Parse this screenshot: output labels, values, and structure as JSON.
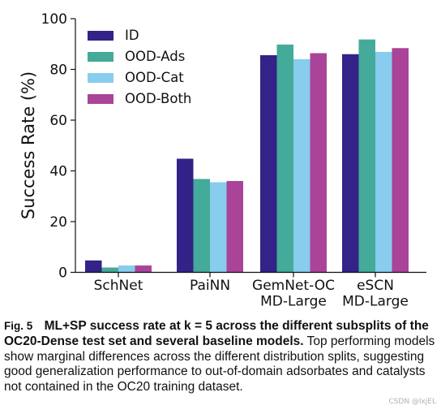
{
  "chart_data": {
    "type": "bar",
    "categories": [
      "SchNet",
      "PaiNN",
      "GemNet-OC\nMD-Large",
      "eSCN\nMD-Large"
    ],
    "series": [
      {
        "name": "ID",
        "color": "#332288",
        "values": [
          4.7,
          44.8,
          85.6,
          86.0
        ]
      },
      {
        "name": "OOD-Ads",
        "color": "#44aa99",
        "values": [
          1.9,
          36.8,
          89.8,
          91.8
        ]
      },
      {
        "name": "OOD-Cat",
        "color": "#88ccee",
        "values": [
          2.7,
          35.5,
          84.0,
          86.9
        ]
      },
      {
        "name": "OOD-Both",
        "color": "#aa4499",
        "values": [
          2.7,
          36.0,
          86.4,
          88.4
        ]
      }
    ],
    "ylabel": "Success Rate (%)",
    "ylim": [
      0,
      100
    ],
    "yticks": [
      0,
      20,
      40,
      60,
      80,
      100
    ],
    "legend_position": "top-left",
    "grid": false
  },
  "caption": {
    "figure_label": "Fig. 5",
    "title": "ML+SP success rate at k = 5 across the different subsplits of the OC20-Dense test set and several baseline models.",
    "body": "Top performing models show marginal differences across the different distribution splits, suggesting good generalization performance to out-of-domain adsorbates and catalysts not contained in the OC20 training dataset."
  },
  "watermark": "CSDN @lxjEL"
}
